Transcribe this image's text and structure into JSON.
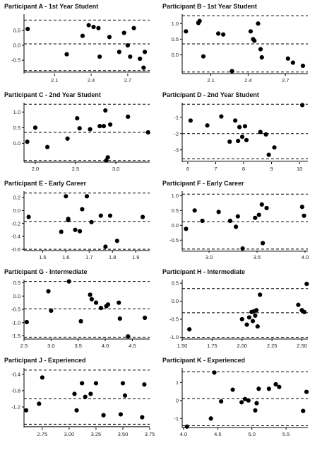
{
  "chart_data": [
    {
      "type": "scatter",
      "title": "Participant A - 1st Year Student",
      "xlim": [
        1.85,
        2.88
      ],
      "ylim": [
        -0.95,
        1.05
      ],
      "xticks": [
        2.1,
        2.4,
        2.7
      ],
      "xtick_labels": [
        "2.1",
        "2.4",
        "2.7"
      ],
      "yticks": [
        -0.5,
        0.0,
        0.5
      ],
      "ytick_labels": [
        "-0.5",
        "0.0",
        "0.5"
      ],
      "hlines": {
        "solid": [
          -0.9
        ],
        "dashed": [
          0.85,
          0.05,
          -0.85
        ]
      },
      "x": [
        1.88,
        2.2,
        2.33,
        2.38,
        2.42,
        2.46,
        2.47,
        2.55,
        2.63,
        2.67,
        2.7,
        2.72,
        2.75,
        2.8,
        2.83,
        2.84
      ],
      "y": [
        0.55,
        -0.3,
        0.32,
        0.68,
        0.62,
        0.58,
        -0.38,
        0.28,
        -0.22,
        0.42,
        0.0,
        -0.38,
        0.58,
        -0.45,
        -0.75,
        -0.22
      ]
    },
    {
      "type": "scatter",
      "title": "Participant B - 1st Year Student",
      "xlim": [
        1.87,
        2.88
      ],
      "ylim": [
        -0.6,
        1.3
      ],
      "xticks": [
        2.1,
        2.4,
        2.7
      ],
      "xtick_labels": [
        "2.1",
        "2.4",
        "2.7"
      ],
      "yticks": [
        0.0,
        0.5,
        1.0
      ],
      "ytick_labels": [
        "0.0",
        "0.5",
        "1.0"
      ],
      "hlines": {
        "solid": [
          -0.6
        ],
        "dashed": [
          1.25,
          0.35,
          -0.55
        ]
      },
      "x": [
        1.9,
        2.0,
        2.01,
        2.04,
        2.16,
        2.2,
        2.27,
        2.42,
        2.44,
        2.45,
        2.48,
        2.5,
        2.51,
        2.72,
        2.76,
        2.84
      ],
      "y": [
        0.75,
        1.02,
        1.08,
        -0.05,
        0.68,
        0.65,
        -0.52,
        0.75,
        0.5,
        0.45,
        1.0,
        0.18,
        -0.08,
        -0.12,
        -0.25,
        -0.35
      ]
    },
    {
      "type": "scatter",
      "title": "Participant C - 2nd Year Student",
      "xlim": [
        1.86,
        3.42
      ],
      "ylim": [
        -0.6,
        1.3
      ],
      "xticks": [
        2.0,
        2.5,
        3.0
      ],
      "xtick_labels": [
        "2.0",
        "2.5",
        "3.0"
      ],
      "yticks": [
        0.0,
        0.5,
        1.0
      ],
      "ytick_labels": [
        "0.0",
        "0.5",
        "1.0"
      ],
      "hlines": {
        "solid": [
          -0.6
        ],
        "dashed": [
          1.25,
          0.35,
          -0.55
        ]
      },
      "x": [
        1.9,
        2.0,
        2.15,
        2.4,
        2.52,
        2.55,
        2.68,
        2.8,
        2.85,
        2.87,
        2.88,
        2.9,
        2.93,
        3.15,
        3.4
      ],
      "y": [
        0.05,
        0.5,
        -0.12,
        0.15,
        0.8,
        0.48,
        0.45,
        0.55,
        0.55,
        1.05,
        -0.55,
        -0.45,
        0.6,
        0.85,
        0.35
      ]
    },
    {
      "type": "scatter",
      "title": "Participant D - 2nd Year Student",
      "xlim": [
        5.8,
        10.3
      ],
      "ylim": [
        -3.75,
        -0.1
      ],
      "xticks": [
        6,
        7,
        8,
        9,
        10
      ],
      "xtick_labels": [
        "6",
        "7",
        "8",
        "9",
        "10"
      ],
      "yticks": [
        -3,
        -2,
        -1
      ],
      "ytick_labels": [
        "-3",
        "-2",
        "-1"
      ],
      "hlines": {
        "solid": [
          -3.7
        ],
        "dashed": [
          -0.2,
          -2.0,
          -3.55
        ]
      },
      "x": [
        6.1,
        6.7,
        7.2,
        7.5,
        7.7,
        7.8,
        7.85,
        7.95,
        8.05,
        8.1,
        8.6,
        8.8,
        8.9,
        9.1,
        10.1
      ],
      "y": [
        -1.2,
        -1.5,
        -0.95,
        -2.5,
        -1.2,
        -2.45,
        -1.6,
        -2.2,
        -1.55,
        -2.4,
        -1.9,
        -2.05,
        -3.3,
        -2.85,
        -0.25
      ]
    },
    {
      "type": "scatter",
      "title": "Participant E - Early Career",
      "xlim": [
        1.42,
        1.96
      ],
      "ylim": [
        -0.62,
        0.3
      ],
      "xticks": [
        1.5,
        1.6,
        1.7,
        1.8,
        1.9
      ],
      "xtick_labels": [
        "1.5",
        "1.6",
        "1.7",
        "1.8",
        "1.9"
      ],
      "yticks": [
        -0.6,
        -0.4,
        -0.2,
        0.0,
        0.2
      ],
      "ytick_labels": [
        "-0.6",
        "-0.4",
        "-0.2",
        "0.0",
        "0.2"
      ],
      "hlines": {
        "solid": [
          -0.62
        ],
        "dashed": [
          0.27,
          -0.17,
          -0.6
        ]
      },
      "x": [
        1.44,
        1.58,
        1.6,
        1.61,
        1.61,
        1.64,
        1.66,
        1.67,
        1.69,
        1.71,
        1.75,
        1.77,
        1.79,
        1.82,
        1.93
      ],
      "y": [
        -0.1,
        -0.33,
        0.22,
        -0.13,
        -0.15,
        -0.3,
        -0.32,
        0.02,
        0.22,
        -0.18,
        -0.08,
        -0.56,
        -0.08,
        -0.47,
        -0.1
      ]
    },
    {
      "type": "scatter",
      "title": "Participant F - Early Career",
      "xlim": [
        2.72,
        4.03
      ],
      "ylim": [
        -0.85,
        1.15
      ],
      "xticks": [
        3.0,
        3.5,
        4.0
      ],
      "xtick_labels": [
        "3.0",
        "3.5",
        "4.0"
      ],
      "yticks": [
        -0.5,
        0.0,
        0.5,
        1.0
      ],
      "ytick_labels": [
        "-0.5",
        "0.0",
        "0.5",
        "1.0"
      ],
      "hlines": {
        "solid": [
          -0.87
        ],
        "dashed": [
          1.05,
          0.12,
          -0.8
        ]
      },
      "x": [
        2.76,
        2.85,
        2.93,
        3.1,
        3.22,
        3.28,
        3.3,
        3.35,
        3.48,
        3.52,
        3.55,
        3.56,
        3.6,
        3.97,
        3.99
      ],
      "y": [
        -0.12,
        0.5,
        0.15,
        0.45,
        0.15,
        -0.05,
        0.3,
        -0.78,
        0.25,
        0.35,
        0.7,
        -0.6,
        0.58,
        0.62,
        0.32
      ]
    },
    {
      "type": "scatter",
      "title": "Participant G - Intermediate",
      "xlim": [
        2.5,
        4.82
      ],
      "ylim": [
        -1.62,
        0.62
      ],
      "xticks": [
        2.5,
        3.0,
        3.5,
        4.0,
        4.5
      ],
      "xtick_labels": [
        "2.5",
        "3.0",
        "3.5",
        "4.0",
        "4.5"
      ],
      "yticks": [
        -1.5,
        -1.0,
        -0.5,
        0.0,
        0.5
      ],
      "ytick_labels": [
        "-1.5",
        "-1.0",
        "-0.5",
        "0.0",
        "0.5"
      ],
      "hlines": {
        "solid": [
          -1.62
        ],
        "dashed": [
          0.55,
          -0.48,
          -1.55
        ]
      },
      "x": [
        2.55,
        2.95,
        3.0,
        3.33,
        3.55,
        3.72,
        3.75,
        3.83,
        3.92,
        4.02,
        4.05,
        4.25,
        4.27,
        4.42,
        4.73
      ],
      "y": [
        -0.98,
        0.18,
        -0.55,
        0.55,
        -0.95,
        0.05,
        -0.12,
        -0.25,
        -0.45,
        -0.38,
        -0.32,
        -0.25,
        -0.85,
        -1.52,
        -0.82
      ]
    },
    {
      "type": "scatter",
      "title": "Participant H - Intermediate",
      "xlim": [
        1.5,
        2.55
      ],
      "ylim": [
        -1.05,
        0.6
      ],
      "xticks": [
        1.5,
        1.75,
        2.0,
        2.25,
        2.5
      ],
      "xtick_labels": [
        "1.50",
        "1.75",
        "2.00",
        "2.25",
        "2.50"
      ],
      "yticks": [
        -1.0,
        -0.5,
        0.0,
        0.5
      ],
      "ytick_labels": [
        "-1.0",
        "-0.5",
        "0.0",
        "0.5"
      ],
      "hlines": {
        "solid": [
          -1.05
        ],
        "dashed": [
          0.35,
          -0.32,
          -1.0
        ]
      },
      "x": [
        1.56,
        2.0,
        2.04,
        2.06,
        2.08,
        2.09,
        2.1,
        2.11,
        2.12,
        2.13,
        2.15,
        2.47,
        2.5,
        2.52,
        2.54
      ],
      "y": [
        -0.78,
        -0.5,
        -0.65,
        -0.45,
        -0.3,
        -0.55,
        -0.28,
        -0.4,
        -0.25,
        -0.7,
        0.18,
        -0.1,
        -0.25,
        -0.3,
        0.48
      ]
    },
    {
      "type": "scatter",
      "title": "Participant J - Experienced",
      "xlim": [
        2.58,
        3.75
      ],
      "ylim": [
        -1.7,
        -0.25
      ],
      "xticks": [
        2.75,
        3.0,
        3.25,
        3.5,
        3.75
      ],
      "xtick_labels": [
        "2.75",
        "3.00",
        "3.25",
        "3.50",
        "3.75"
      ],
      "yticks": [
        -1.2,
        -0.8,
        -0.4
      ],
      "ytick_labels": [
        "-1.2",
        "-0.8",
        "-0.4"
      ],
      "hlines": {
        "solid": [
          -1.68
        ],
        "dashed": [
          -0.3,
          -1.0,
          -1.62
        ]
      },
      "x": [
        2.6,
        2.72,
        2.75,
        3.05,
        3.07,
        3.12,
        3.15,
        3.2,
        3.25,
        3.32,
        3.48,
        3.5,
        3.52,
        3.68,
        3.7
      ],
      "y": [
        -1.28,
        -1.12,
        -0.48,
        -0.88,
        -1.28,
        -0.62,
        -0.95,
        -0.88,
        -0.62,
        -1.4,
        -1.38,
        -0.62,
        -0.92,
        -1.45,
        -0.65
      ]
    },
    {
      "type": "scatter",
      "title": "Participant K - Experienced",
      "xlim": [
        3.98,
        5.82
      ],
      "ylim": [
        -1.5,
        1.8
      ],
      "xticks": [
        4.0,
        4.5,
        5.0,
        5.5
      ],
      "xtick_labels": [
        "4.0",
        "4.5",
        "5.0",
        "5.5"
      ],
      "yticks": [
        -1,
        0,
        1
      ],
      "ytick_labels": [
        "-1",
        "0",
        "1"
      ],
      "hlines": {
        "solid": [
          -1.5
        ],
        "dashed": [
          1.6,
          0.1,
          -1.4
        ]
      },
      "x": [
        4.05,
        4.4,
        4.45,
        4.55,
        4.72,
        4.85,
        4.9,
        4.95,
        5.05,
        5.07,
        5.1,
        5.25,
        5.35,
        5.4,
        5.75,
        5.8
      ],
      "y": [
        -1.45,
        -1.0,
        1.55,
        -0.05,
        0.6,
        -0.1,
        0.08,
        0.0,
        -0.55,
        -0.15,
        0.65,
        0.65,
        0.9,
        0.75,
        -0.58,
        0.48
      ]
    }
  ]
}
